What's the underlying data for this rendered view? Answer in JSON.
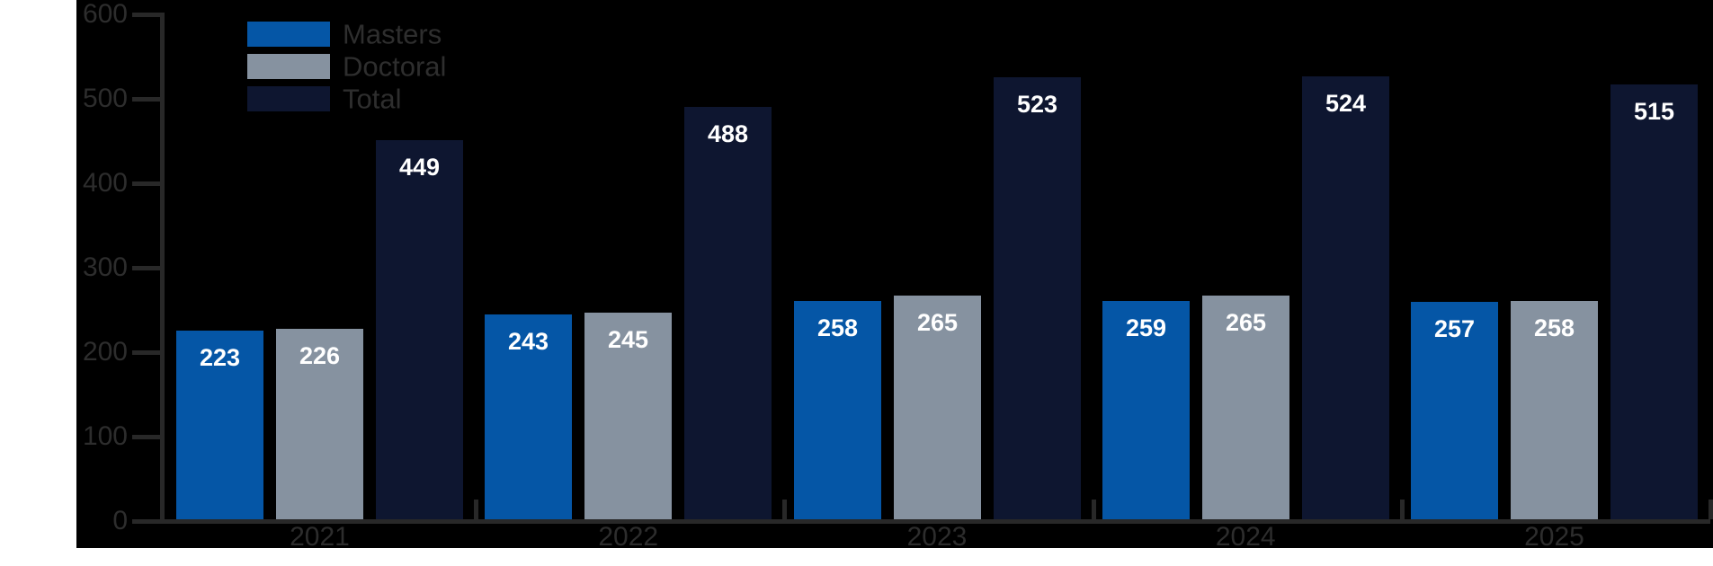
{
  "chart_data": {
    "type": "bar",
    "title": "",
    "categories": [
      "2021",
      "2022",
      "2023",
      "2024",
      "2025"
    ],
    "series": [
      {
        "name": "Masters",
        "color": "#0556A6",
        "values": [
          223,
          243,
          258,
          259,
          257
        ]
      },
      {
        "name": "Doctoral",
        "color": "#8692A0",
        "values": [
          226,
          245,
          265,
          265,
          258
        ]
      },
      {
        "name": "Total",
        "color": "#0E1630",
        "values": [
          449,
          488,
          523,
          524,
          515
        ]
      }
    ],
    "xlabel": "",
    "ylabel": "",
    "ylim": [
      0,
      600
    ],
    "yticks": [
      0,
      100,
      200,
      300,
      400,
      500,
      600
    ],
    "grid": false,
    "legend_position": "upper left inside plot",
    "bar_value_labels": true
  },
  "colors": {
    "background": "#000000",
    "page_margin": "#FFFFFF",
    "axis": "#282828",
    "tick_label": "#2D2D2D",
    "legend_label": "#2E2E2E",
    "bar_label": "#FFFFFF"
  }
}
